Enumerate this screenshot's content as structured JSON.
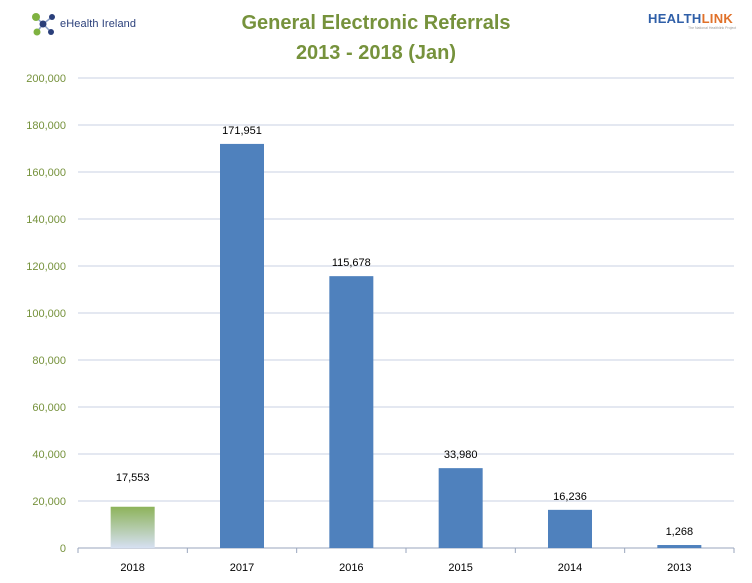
{
  "logos": {
    "left_text": "eHealth Ireland",
    "right_text_a": "HEALTH",
    "right_text_b": "LINK",
    "right_tagline": "The National Healthlink Project"
  },
  "chart_data": {
    "type": "bar",
    "title_line1": "General Electronic Referrals",
    "title_line2": "2013 - 2018 (Jan)",
    "categories": [
      "2018",
      "2017",
      "2016",
      "2015",
      "2014",
      "2013"
    ],
    "values": [
      17553,
      171951,
      115678,
      33980,
      16236,
      1268
    ],
    "value_labels": [
      "17,553",
      "171,951",
      "115,678",
      "33,980",
      "16,236",
      "1,268"
    ],
    "y_ticks": [
      0,
      20000,
      40000,
      60000,
      80000,
      100000,
      120000,
      140000,
      160000,
      180000,
      200000
    ],
    "y_tick_labels": [
      "0",
      "20,000",
      "40,000",
      "60,000",
      "80,000",
      "100,000",
      "120,000",
      "140,000",
      "160,000",
      "180,000",
      "200,000"
    ],
    "ylim": [
      0,
      200000
    ],
    "xlabel": "",
    "ylabel": "",
    "grid": true,
    "colors": {
      "bar": "#4f81bd",
      "first_bar_top": "#8db35a",
      "first_bar_bottom": "#d6e0f2",
      "gridline": "#c9d2e3",
      "axis_text": "#76923c",
      "title": "#76923c"
    }
  }
}
